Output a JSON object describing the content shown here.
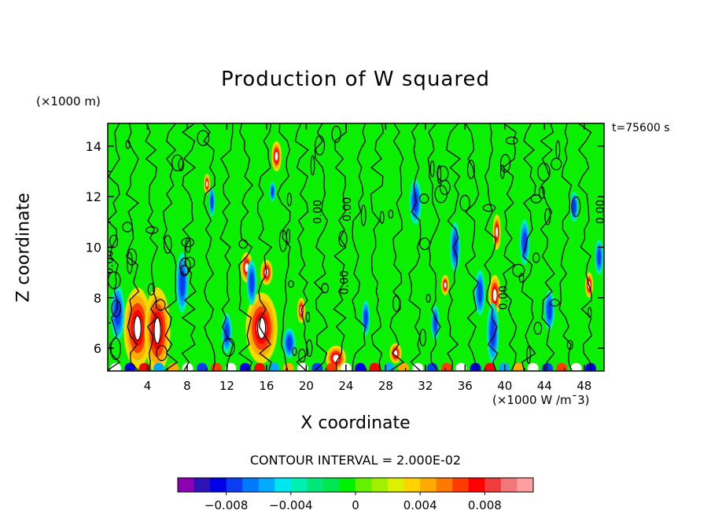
{
  "chart_data": {
    "type": "heatmap",
    "title": "Production of W squared",
    "xlabel": "X coordinate",
    "ylabel": "Z coordinate",
    "x_unit_label": "(×1000 W /m¯3)",
    "y_unit_label": "(×1000 m)",
    "time_label": "t=75600 s",
    "contour_interval_label": "CONTOUR INTERVAL = 2.000E-02",
    "xlim": [
      0,
      50
    ],
    "ylim": [
      5.1,
      14.9
    ],
    "x_ticks": [
      4,
      8,
      12,
      16,
      20,
      24,
      28,
      32,
      36,
      40,
      44,
      48
    ],
    "y_ticks": [
      6,
      8,
      10,
      12,
      14
    ],
    "colorbar": {
      "min": -0.011,
      "max": 0.011,
      "tick_values": [
        -0.008,
        -0.004,
        0,
        0.004,
        0.008
      ],
      "tick_labels": [
        "−0.008",
        "−0.004",
        "0",
        "0.004",
        "0.008"
      ],
      "colors": [
        "#8c00b4",
        "#2e14b4",
        "#0000e6",
        "#0a3cf0",
        "#0078ff",
        "#00aaff",
        "#00e6f0",
        "#00f0b4",
        "#00e678",
        "#00e650",
        "#00f000",
        "#64f000",
        "#a0f000",
        "#dcf000",
        "#ffd200",
        "#ffaa00",
        "#ff7800",
        "#ff3c00",
        "#ff0000",
        "#f03c3c",
        "#f07878",
        "#ffa0a0"
      ]
    },
    "contour_labels": [
      {
        "text": "0.00",
        "x": 0.5,
        "y": 9.4
      },
      {
        "text": "0.00",
        "x": 21.5,
        "y": 11.4
      },
      {
        "text": "0.00",
        "x": 24.5,
        "y": 11.5
      },
      {
        "text": "0.00",
        "x": 24.2,
        "y": 8.6
      },
      {
        "text": "0.00",
        "x": 40.2,
        "y": 8.0
      },
      {
        "text": "0.00",
        "x": 50.0,
        "y": 11.4
      }
    ],
    "features": [
      {
        "kind": "pos",
        "x": 3,
        "y": 6.8,
        "rx": 1.4,
        "ry": 1.6
      },
      {
        "kind": "pos",
        "x": 5,
        "y": 6.7,
        "rx": 1.3,
        "ry": 1.7
      },
      {
        "kind": "pos",
        "x": 15.5,
        "y": 6.8,
        "rx": 1.6,
        "ry": 1.4
      },
      {
        "kind": "pos",
        "x": 14,
        "y": 9.2,
        "rx": 0.6,
        "ry": 0.6
      },
      {
        "kind": "pos",
        "x": 16,
        "y": 9.0,
        "rx": 0.6,
        "ry": 0.5
      },
      {
        "kind": "pos",
        "x": 17,
        "y": 13.6,
        "rx": 0.5,
        "ry": 0.6
      },
      {
        "kind": "pos",
        "x": 10,
        "y": 12.5,
        "rx": 0.3,
        "ry": 0.4
      },
      {
        "kind": "pos",
        "x": 19.5,
        "y": 7.5,
        "rx": 0.4,
        "ry": 0.5
      },
      {
        "kind": "pos",
        "x": 23,
        "y": 5.6,
        "rx": 1.0,
        "ry": 0.5
      },
      {
        "kind": "pos",
        "x": 29,
        "y": 5.8,
        "rx": 0.6,
        "ry": 0.4
      },
      {
        "kind": "pos",
        "x": 34,
        "y": 8.5,
        "rx": 0.4,
        "ry": 0.4
      },
      {
        "kind": "pos",
        "x": 39,
        "y": 8.1,
        "rx": 0.6,
        "ry": 0.8
      },
      {
        "kind": "pos",
        "x": 39.2,
        "y": 10.6,
        "rx": 0.4,
        "ry": 0.7
      },
      {
        "kind": "pos",
        "x": 48.5,
        "y": 8.5,
        "rx": 0.4,
        "ry": 0.5
      },
      {
        "kind": "neg",
        "x": 1,
        "y": 7.4,
        "rx": 0.7,
        "ry": 1.1
      },
      {
        "kind": "neg",
        "x": 7.5,
        "y": 8.6,
        "rx": 0.6,
        "ry": 1.2
      },
      {
        "kind": "neg",
        "x": 12,
        "y": 6.6,
        "rx": 0.5,
        "ry": 0.8
      },
      {
        "kind": "neg",
        "x": 14.5,
        "y": 8.6,
        "rx": 0.5,
        "ry": 0.9
      },
      {
        "kind": "neg",
        "x": 10.5,
        "y": 11.8,
        "rx": 0.3,
        "ry": 0.6
      },
      {
        "kind": "neg",
        "x": 16.6,
        "y": 12.2,
        "rx": 0.3,
        "ry": 0.4
      },
      {
        "kind": "neg",
        "x": 18.3,
        "y": 6.2,
        "rx": 0.6,
        "ry": 0.6
      },
      {
        "kind": "neg",
        "x": 26,
        "y": 7.2,
        "rx": 0.4,
        "ry": 0.7
      },
      {
        "kind": "neg",
        "x": 31,
        "y": 11.8,
        "rx": 0.6,
        "ry": 0.9
      },
      {
        "kind": "neg",
        "x": 35,
        "y": 10.0,
        "rx": 0.5,
        "ry": 1.0
      },
      {
        "kind": "neg",
        "x": 37.5,
        "y": 8.2,
        "rx": 0.5,
        "ry": 0.9
      },
      {
        "kind": "neg",
        "x": 38.8,
        "y": 6.6,
        "rx": 0.6,
        "ry": 1.2
      },
      {
        "kind": "neg",
        "x": 42,
        "y": 10.2,
        "rx": 0.5,
        "ry": 0.9
      },
      {
        "kind": "neg",
        "x": 44.5,
        "y": 7.5,
        "rx": 0.5,
        "ry": 0.8
      },
      {
        "kind": "neg",
        "x": 47,
        "y": 11.6,
        "rx": 0.4,
        "ry": 0.6
      },
      {
        "kind": "neg",
        "x": 49.5,
        "y": 9.6,
        "rx": 0.4,
        "ry": 0.7
      },
      {
        "kind": "neg",
        "x": 33,
        "y": 7.0,
        "rx": 0.4,
        "ry": 0.7
      }
    ]
  }
}
